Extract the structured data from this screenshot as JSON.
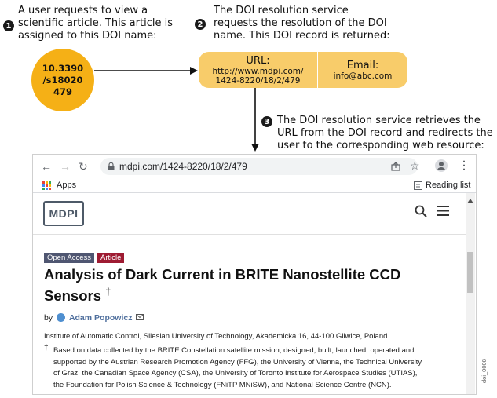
{
  "step1": {
    "number": "1",
    "lines": [
      "A user requests to view a",
      "scientific article. This article is",
      "assigned to this DOI name:"
    ]
  },
  "doi_name": [
    "10.3390",
    "/s18020",
    "479"
  ],
  "step2": {
    "number": "2",
    "lines": [
      "The DOI resolution service",
      "requests the resolution of the DOI",
      "name. This DOI record is returned:"
    ]
  },
  "record": {
    "url_label": "URL:",
    "url_value": [
      "http://www.mdpi.com/",
      "1424-8220/18/2/479"
    ],
    "email_label": "Email:",
    "email_value": "info@abc.com"
  },
  "step3": {
    "number": "3",
    "lines": [
      "The DOI resolution service retrieves the",
      "URL from the DOI record and redirects the",
      "user to the corresponding web resource:"
    ]
  },
  "browser": {
    "address": "mdpi.com/1424-8220/18/2/479",
    "apps_label": "Apps",
    "reading_list_label": "Reading list"
  },
  "article": {
    "logo": "MDPI",
    "tags": [
      "Open Access",
      "Article"
    ],
    "title_lines": [
      "Analysis of Dark Current in BRITE Nanostellite CCD",
      "Sensors"
    ],
    "title_mark": "†",
    "by": "by",
    "author": "Adam Popowicz",
    "affiliation": "Institute of Automatic Control, Silesian University of Technology, Akademicka 16, 44-100 Gliwice, Poland",
    "note_mark": "†",
    "note_lines": [
      "Based on data collected by the BRITE Constellation satellite mission, designed, built, launched, operated and",
      "supported by the Austrian Research Promotion Agency (FFG), the University of Vienna, the Technical University",
      "of Graz, the Canadian Space Agency (CSA), the University of Toronto Institute for Aerospace Studies (UTIAS),",
      "the Foundation for Polish Science & Technology (FNiTP MNiSW), and National Science Centre (NCN)."
    ]
  },
  "doc_id": "doi_0008",
  "colors": {
    "doi_circle": "#f5b016",
    "record_box": "#f8cc6a",
    "oa_tag": "#4f5671",
    "article_tag": "#9e1b32"
  }
}
